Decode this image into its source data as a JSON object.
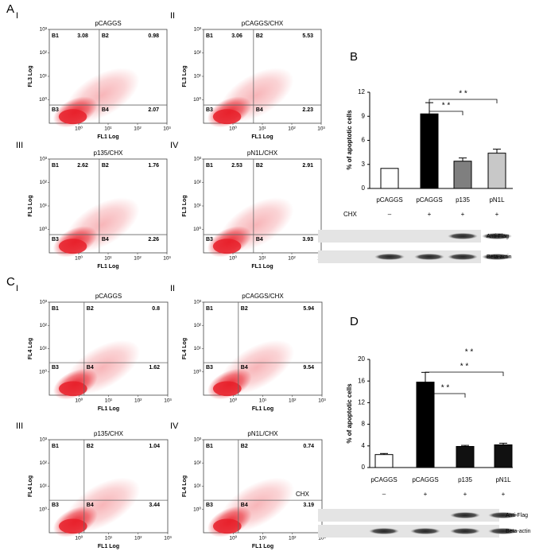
{
  "chart_data": [
    {
      "type": "quadrant",
      "panel": "A",
      "label": "I",
      "title": "pCAGGS",
      "xlabel": "FL1 Log",
      "ylabel": "FL3 Log",
      "log_scale": true,
      "xlim": [
        0.1,
        1000
      ],
      "ylim": [
        0.1,
        1000
      ],
      "xticks": [
        {
          "value": 1,
          "label": "10⁰"
        },
        {
          "value": 10,
          "label": "10¹"
        },
        {
          "value": 100,
          "label": "10²"
        },
        {
          "value": 1000,
          "label": "10³"
        }
      ],
      "yticks": [
        {
          "value": 1,
          "label": "10⁰"
        },
        {
          "value": 10,
          "label": "10¹"
        },
        {
          "value": 100,
          "label": "10²"
        },
        {
          "value": 1000,
          "label": "10³"
        }
      ],
      "gate_x": 5,
      "gate_y": 0.6,
      "color": "#e8202a",
      "quadrants": [
        {
          "name": "B1",
          "value": 3.08
        },
        {
          "name": "B2",
          "value": 0.98
        },
        {
          "name": "B3"
        },
        {
          "name": "B4",
          "value": 2.07
        }
      ]
    },
    {
      "type": "quadrant",
      "label": "II",
      "title": "pCAGGS/CHX",
      "xlabel": "FL1 Log",
      "ylabel": "FL3 Log",
      "log_scale": true,
      "xlim": [
        0.1,
        1000
      ],
      "ylim": [
        0.1,
        1000
      ],
      "xticks": [
        {
          "value": 1,
          "label": "10⁰"
        },
        {
          "value": 10,
          "label": "10¹"
        },
        {
          "value": 100,
          "label": "10²"
        },
        {
          "value": 1000,
          "label": "10³"
        }
      ],
      "yticks": [
        {
          "value": 1,
          "label": "10⁰"
        },
        {
          "value": 10,
          "label": "10¹"
        },
        {
          "value": 100,
          "label": "10²"
        },
        {
          "value": 1000,
          "label": "10³"
        }
      ],
      "gate_x": 5,
      "gate_y": 0.6,
      "color": "#e8202a",
      "quadrants": [
        {
          "name": "B1",
          "value": 3.06
        },
        {
          "name": "B2",
          "value": 5.53
        },
        {
          "name": "B3"
        },
        {
          "name": "B4",
          "value": 2.23
        }
      ]
    },
    {
      "type": "quadrant",
      "label": "III",
      "title": "p135/CHX",
      "xlabel": "FL1 Log",
      "ylabel": "FL3 Log",
      "log_scale": true,
      "xlim": [
        0.1,
        1000
      ],
      "ylim": [
        0.1,
        1000
      ],
      "xticks": [
        {
          "value": 1,
          "label": "10⁰"
        },
        {
          "value": 10,
          "label": "10¹"
        },
        {
          "value": 100,
          "label": "10²"
        },
        {
          "value": 1000,
          "label": "10³"
        }
      ],
      "yticks": [
        {
          "value": 1,
          "label": "10⁰"
        },
        {
          "value": 10,
          "label": "10¹"
        },
        {
          "value": 100,
          "label": "10²"
        },
        {
          "value": 1000,
          "label": "10³"
        }
      ],
      "gate_x": 5,
      "gate_y": 0.6,
      "color": "#e8202a",
      "quadrants": [
        {
          "name": "B1",
          "value": 2.62
        },
        {
          "name": "B2",
          "value": 1.76
        },
        {
          "name": "B3"
        },
        {
          "name": "B4",
          "value": 2.26
        }
      ]
    },
    {
      "type": "quadrant",
      "label": "IV",
      "title": "pN1L/CHX",
      "xlabel": "FL1 Log",
      "ylabel": "FL3 Log",
      "log_scale": true,
      "xlim": [
        0.1,
        1000
      ],
      "ylim": [
        0.1,
        1000
      ],
      "xticks": [
        {
          "value": 1,
          "label": "10⁰"
        },
        {
          "value": 10,
          "label": "10¹"
        },
        {
          "value": 100,
          "label": "10²"
        },
        {
          "value": 1000,
          "label": "10³"
        }
      ],
      "yticks": [
        {
          "value": 1,
          "label": "10⁰"
        },
        {
          "value": 10,
          "label": "10¹"
        },
        {
          "value": 100,
          "label": "10²"
        },
        {
          "value": 1000,
          "label": "10³"
        }
      ],
      "gate_x": 5,
      "gate_y": 0.6,
      "color": "#e8202a",
      "quadrants": [
        {
          "name": "B1",
          "value": 2.53
        },
        {
          "name": "B2",
          "value": 2.91
        },
        {
          "name": "B3"
        },
        {
          "name": "B4",
          "value": 3.93
        }
      ]
    },
    {
      "type": "bar",
      "panel": "B",
      "ylabel": "% of apoptotic cells",
      "categories": [
        "pCAGGS",
        "pCAGGS",
        "p135",
        "pN1L"
      ],
      "values": [
        2.5,
        9.3,
        3.4,
        4.4
      ],
      "errors": [
        0,
        1.4,
        0.4,
        0.5
      ],
      "colors": [
        "#ffffff",
        "#000000",
        "#7f7f7f",
        "#c8c8c8"
      ],
      "ylim": [
        0,
        12
      ],
      "yticks": [
        0,
        3,
        6,
        9,
        12
      ],
      "annotations": [
        "* *",
        "* *"
      ],
      "treatment": {
        "label": "CHX",
        "values": [
          "–",
          "+",
          "+",
          "+"
        ]
      },
      "blot": [
        "Anti-Flag",
        "Beta-actin"
      ]
    },
    {
      "type": "quadrant",
      "panel": "C",
      "label": "I",
      "title": "pCAGGS",
      "xlabel": "FL1 Log",
      "ylabel": "FL4 Log",
      "log_scale": true,
      "xlim": [
        0.1,
        1000
      ],
      "ylim": [
        0.1,
        1000
      ],
      "xticks": [
        {
          "value": 1,
          "label": "10⁰"
        },
        {
          "value": 10,
          "label": "10¹"
        },
        {
          "value": 100,
          "label": "10²"
        },
        {
          "value": 1000,
          "label": "10³"
        }
      ],
      "yticks": [
        {
          "value": 1,
          "label": "10⁰"
        },
        {
          "value": 10,
          "label": "10¹"
        },
        {
          "value": 100,
          "label": "10²"
        },
        {
          "value": 1000,
          "label": "10³"
        }
      ],
      "gate_x": 1.5,
      "gate_y": 2.5,
      "color": "#e8202a",
      "quadrants": [
        {
          "name": "B1"
        },
        {
          "name": "B2",
          "value": 0.8
        },
        {
          "name": "B3"
        },
        {
          "name": "B4",
          "value": 1.62
        }
      ]
    },
    {
      "type": "quadrant",
      "label": "II",
      "title": "pCAGGS/CHX",
      "xlabel": "FL1 Log",
      "ylabel": "FL4 Log",
      "log_scale": true,
      "xlim": [
        0.1,
        1000
      ],
      "ylim": [
        0.1,
        1000
      ],
      "xticks": [
        {
          "value": 1,
          "label": "10⁰"
        },
        {
          "value": 10,
          "label": "10¹"
        },
        {
          "value": 100,
          "label": "10²"
        },
        {
          "value": 1000,
          "label": "10³"
        }
      ],
      "yticks": [
        {
          "value": 1,
          "label": "10⁰"
        },
        {
          "value": 10,
          "label": "10¹"
        },
        {
          "value": 100,
          "label": "10²"
        },
        {
          "value": 1000,
          "label": "10³"
        }
      ],
      "gate_x": 1.5,
      "gate_y": 2.5,
      "color": "#e8202a",
      "quadrants": [
        {
          "name": "B1"
        },
        {
          "name": "B2",
          "value": 5.94
        },
        {
          "name": "B3"
        },
        {
          "name": "B4",
          "value": 9.54
        }
      ]
    },
    {
      "type": "quadrant",
      "label": "III",
      "title": "p135/CHX",
      "xlabel": "FL1 Log",
      "ylabel": "FL4 Log",
      "log_scale": true,
      "xlim": [
        0.1,
        1000
      ],
      "ylim": [
        0.1,
        1000
      ],
      "xticks": [
        {
          "value": 1,
          "label": "10⁰"
        },
        {
          "value": 10,
          "label": "10¹"
        },
        {
          "value": 100,
          "label": "10²"
        },
        {
          "value": 1000,
          "label": "10³"
        }
      ],
      "yticks": [
        {
          "value": 1,
          "label": "10⁰"
        },
        {
          "value": 10,
          "label": "10¹"
        },
        {
          "value": 100,
          "label": "10²"
        },
        {
          "value": 1000,
          "label": "10³"
        }
      ],
      "gate_x": 1.5,
      "gate_y": 2.5,
      "color": "#e8202a",
      "quadrants": [
        {
          "name": "B1"
        },
        {
          "name": "B2",
          "value": 1.04
        },
        {
          "name": "B3"
        },
        {
          "name": "B4",
          "value": 3.44
        }
      ]
    },
    {
      "type": "quadrant",
      "label": "IV",
      "title": "pN1L/CHX",
      "xlabel": "FL1 Log",
      "ylabel": "FL4 Log",
      "log_scale": true,
      "xlim": [
        0.1,
        1000
      ],
      "ylim": [
        0.1,
        1000
      ],
      "xticks": [
        {
          "value": 1,
          "label": "10⁰"
        },
        {
          "value": 10,
          "label": "10¹"
        },
        {
          "value": 100,
          "label": "10²"
        },
        {
          "value": 1000,
          "label": "10³"
        }
      ],
      "yticks": [
        {
          "value": 1,
          "label": "10⁰"
        },
        {
          "value": 10,
          "label": "10¹"
        },
        {
          "value": 100,
          "label": "10²"
        },
        {
          "value": 1000,
          "label": "10³"
        }
      ],
      "gate_x": 1.5,
      "gate_y": 2.5,
      "color": "#e8202a",
      "quadrants": [
        {
          "name": "B1"
        },
        {
          "name": "B2",
          "value": 0.74
        },
        {
          "name": "B3"
        },
        {
          "name": "B4",
          "value": 3.19
        }
      ]
    },
    {
      "type": "bar",
      "panel": "D",
      "ylabel": "% of apoptotic cells",
      "categories": [
        "pCAGGS",
        "pCAGGS",
        "p135",
        "pN1L"
      ],
      "values": [
        2.4,
        15.8,
        3.9,
        4.2
      ],
      "errors": [
        0.2,
        1.8,
        0.2,
        0.3
      ],
      "colors": [
        "#ffffff",
        "#000000",
        "#111111",
        "#111111"
      ],
      "ylim": [
        0,
        20
      ],
      "yticks": [
        0,
        4,
        8,
        12,
        16,
        20
      ],
      "annotations": [
        "* *",
        "* *",
        "* *"
      ],
      "treatment": {
        "label": "CHX",
        "values": [
          "–",
          "+",
          "+",
          "+"
        ]
      },
      "blot": [
        "Anti-Flag",
        "Beta-actin"
      ]
    }
  ]
}
